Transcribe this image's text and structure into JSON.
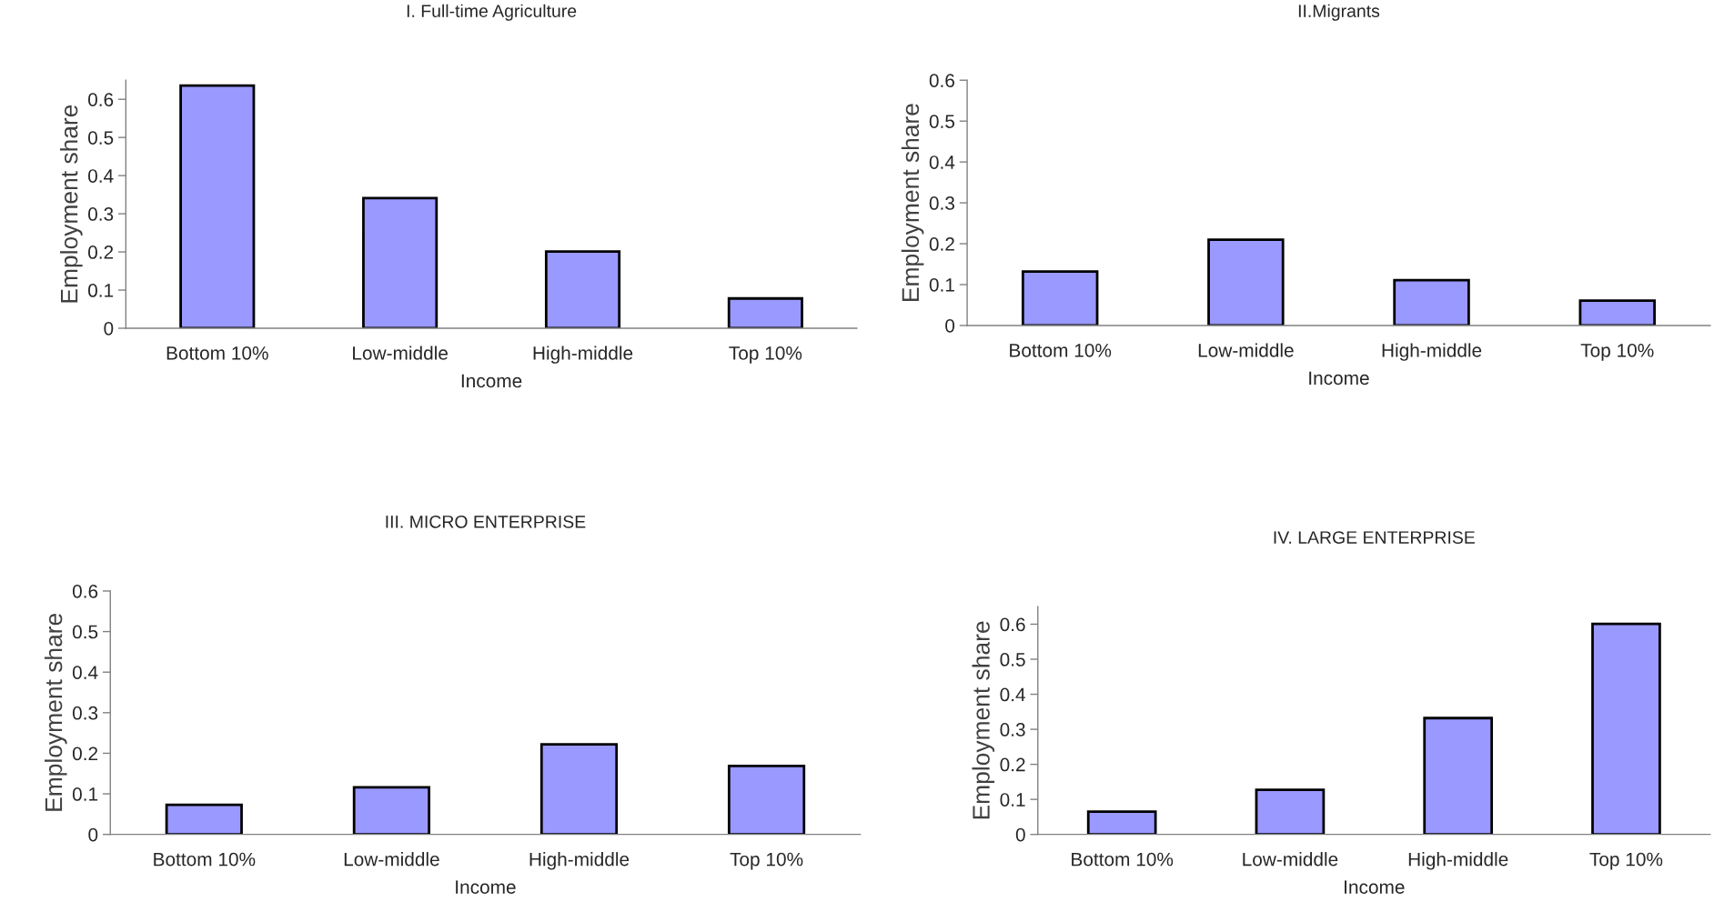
{
  "chart_data": [
    {
      "type": "bar",
      "title": "I. Full-time Agriculture",
      "xlabel": "Income",
      "ylabel": "Employment share",
      "categories": [
        "Bottom 10%",
        "Low-middle",
        "High-middle",
        "Top 10%"
      ],
      "values": [
        0.636,
        0.341,
        0.201,
        0.078
      ],
      "color": "#9999ff",
      "ylim": [
        0,
        0.65
      ],
      "yticks": [
        0,
        0.1,
        0.2,
        0.3,
        0.4,
        0.5,
        0.6
      ],
      "grid": false,
      "legend": false
    },
    {
      "type": "bar",
      "title": "II.Migrants",
      "xlabel": "Income",
      "ylabel": "Employment share",
      "categories": [
        "Bottom 10%",
        "Low-middle",
        "High-middle",
        "Top 10%"
      ],
      "values": [
        0.132,
        0.21,
        0.111,
        0.061
      ],
      "color": "#9999ff",
      "ylim": [
        0,
        0.6
      ],
      "yticks": [
        0,
        0.1,
        0.2,
        0.3,
        0.4,
        0.5,
        0.6
      ],
      "grid": false,
      "legend": false
    },
    {
      "type": "bar",
      "title": "III. MICRO ENTERPRISE",
      "xlabel": "Income",
      "ylabel": "Employment share",
      "categories": [
        "Bottom 10%",
        "Low-middle",
        "High-middle",
        "Top 10%"
      ],
      "values": [
        0.073,
        0.116,
        0.222,
        0.169
      ],
      "color": "#9999ff",
      "ylim": [
        0,
        0.6
      ],
      "yticks": [
        0,
        0.1,
        0.2,
        0.3,
        0.4,
        0.5,
        0.6
      ],
      "grid": false,
      "legend": false
    },
    {
      "type": "bar",
      "title": "IV. LARGE ENTERPRISE",
      "xlabel": "Income",
      "ylabel": "Employment share",
      "categories": [
        "Bottom 10%",
        "Low-middle",
        "High-middle",
        "Top 10%"
      ],
      "values": [
        0.065,
        0.127,
        0.332,
        0.601
      ],
      "color": "#9999ff",
      "ylim": [
        0,
        0.65
      ],
      "yticks": [
        0,
        0.1,
        0.2,
        0.3,
        0.4,
        0.5,
        0.6
      ],
      "grid": false,
      "legend": false
    }
  ]
}
